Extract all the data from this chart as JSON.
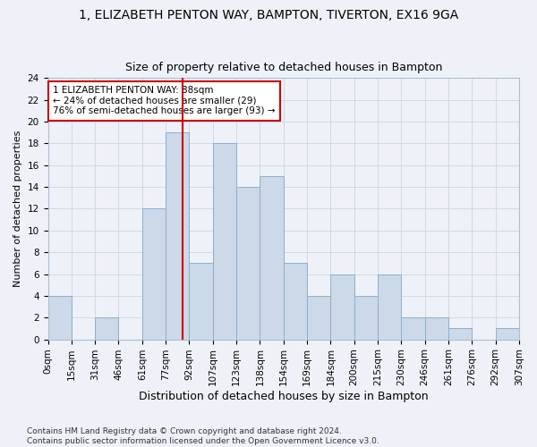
{
  "title": "1, ELIZABETH PENTON WAY, BAMPTON, TIVERTON, EX16 9GA",
  "subtitle": "Size of property relative to detached houses in Bampton",
  "xlabel": "Distribution of detached houses by size in Bampton",
  "ylabel": "Number of detached properties",
  "bin_labels": [
    "0sqm",
    "15sqm",
    "31sqm",
    "46sqm",
    "61sqm",
    "77sqm",
    "92sqm",
    "107sqm",
    "123sqm",
    "138sqm",
    "154sqm",
    "169sqm",
    "184sqm",
    "200sqm",
    "215sqm",
    "230sqm",
    "246sqm",
    "261sqm",
    "276sqm",
    "292sqm",
    "307sqm"
  ],
  "counts": [
    4,
    0,
    2,
    0,
    12,
    19,
    7,
    18,
    14,
    15,
    7,
    4,
    6,
    4,
    6,
    2,
    2,
    1,
    0,
    1
  ],
  "bar_color": "#ccd9e8",
  "bar_edge_color": "#8ab0cc",
  "property_bin": 5,
  "vline_color": "#cc0000",
  "annotation_line1": "1 ELIZABETH PENTON WAY: 88sqm",
  "annotation_line2": "← 24% of detached houses are smaller (29)",
  "annotation_line3": "76% of semi-detached houses are larger (93) →",
  "annotation_box_color": "#ffffff",
  "annotation_box_edge_color": "#cc0000",
  "ylim": [
    0,
    24
  ],
  "yticks": [
    0,
    2,
    4,
    6,
    8,
    10,
    12,
    14,
    16,
    18,
    20,
    22,
    24
  ],
  "grid_color": "#d0d8e8",
  "background_color": "#eef2f8",
  "footer_text": "Contains HM Land Registry data © Crown copyright and database right 2024.\nContains public sector information licensed under the Open Government Licence v3.0.",
  "title_fontsize": 10,
  "subtitle_fontsize": 9,
  "xlabel_fontsize": 9,
  "ylabel_fontsize": 8,
  "tick_fontsize": 7.5,
  "annotation_fontsize": 7.5,
  "footer_fontsize": 6.5
}
